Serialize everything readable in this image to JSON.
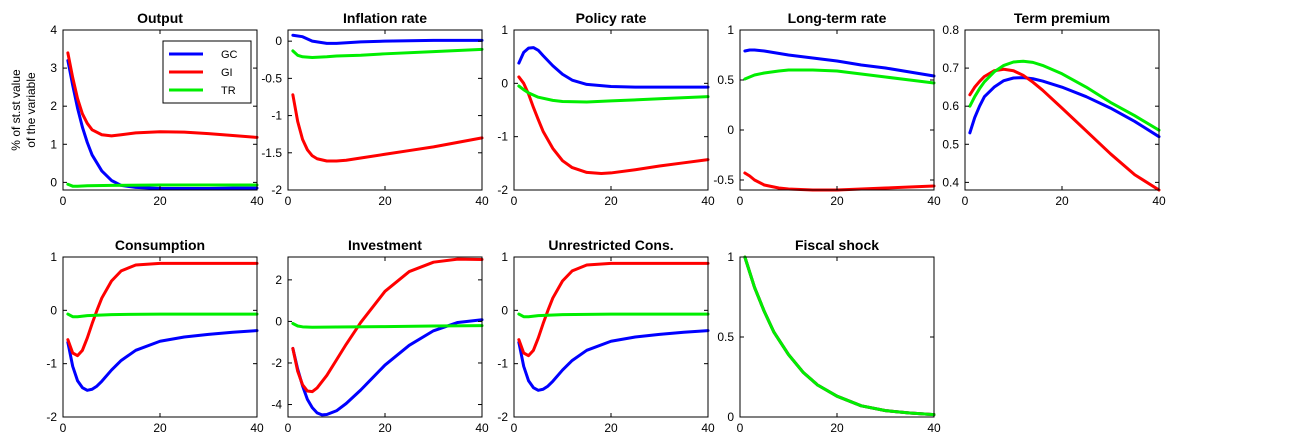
{
  "chart_data": [
    {
      "type": "line",
      "title": "Output",
      "ylabel": [
        "% of st.st value",
        "of the variable"
      ],
      "xlim": [
        0,
        40
      ],
      "ylim": [
        -0.2,
        4
      ],
      "xticks": [
        "0",
        "20",
        "40"
      ],
      "yticks": [
        "0",
        "1",
        "2",
        "3",
        "4"
      ],
      "legend": {
        "placement": "top-right",
        "entries": [
          "GC",
          "GI",
          "TR"
        ]
      },
      "series": [
        {
          "name": "GC",
          "color": "#0000ff",
          "x": [
            1,
            2,
            3,
            4,
            5,
            6,
            8,
            10,
            12,
            15,
            20,
            25,
            30,
            35,
            40
          ],
          "y": [
            3.2,
            2.55,
            1.95,
            1.45,
            1.05,
            0.72,
            0.3,
            0.05,
            -0.08,
            -0.13,
            -0.16,
            -0.16,
            -0.16,
            -0.15,
            -0.15
          ]
        },
        {
          "name": "GI",
          "color": "#ff0000",
          "x": [
            1,
            2,
            3,
            4,
            5,
            6,
            8,
            10,
            12,
            15,
            20,
            25,
            30,
            35,
            40
          ],
          "y": [
            3.4,
            2.75,
            2.2,
            1.8,
            1.55,
            1.38,
            1.25,
            1.22,
            1.25,
            1.3,
            1.33,
            1.32,
            1.28,
            1.23,
            1.18
          ]
        },
        {
          "name": "TR",
          "color": "#00ee00",
          "x": [
            1,
            2,
            3,
            5,
            10,
            20,
            30,
            40
          ],
          "y": [
            -0.05,
            -0.1,
            -0.1,
            -0.09,
            -0.08,
            -0.07,
            -0.07,
            -0.07
          ]
        }
      ]
    },
    {
      "type": "line",
      "title": "Inflation rate",
      "xlim": [
        0,
        40
      ],
      "ylim": [
        -2,
        0.15
      ],
      "xticks": [
        "0",
        "20",
        "40"
      ],
      "yticks": [
        "-2",
        "-1.5",
        "-1",
        "-0.5",
        "0"
      ],
      "series": [
        {
          "name": "GC",
          "color": "#0000ff",
          "x": [
            1,
            3,
            5,
            8,
            10,
            15,
            20,
            30,
            40
          ],
          "y": [
            0.08,
            0.06,
            0.0,
            -0.03,
            -0.03,
            -0.01,
            0.0,
            0.01,
            0.01
          ]
        },
        {
          "name": "GI",
          "color": "#ff0000",
          "x": [
            1,
            2,
            3,
            4,
            5,
            6,
            8,
            10,
            12,
            15,
            20,
            25,
            30,
            35,
            40
          ],
          "y": [
            -0.72,
            -1.08,
            -1.32,
            -1.46,
            -1.54,
            -1.58,
            -1.61,
            -1.61,
            -1.6,
            -1.57,
            -1.52,
            -1.47,
            -1.42,
            -1.36,
            -1.3
          ]
        },
        {
          "name": "TR",
          "color": "#00ee00",
          "x": [
            1,
            2,
            3,
            5,
            8,
            10,
            15,
            20,
            30,
            40
          ],
          "y": [
            -0.13,
            -0.19,
            -0.21,
            -0.22,
            -0.21,
            -0.2,
            -0.19,
            -0.17,
            -0.14,
            -0.11
          ]
        }
      ]
    },
    {
      "type": "line",
      "title": "Policy rate",
      "xlim": [
        0,
        40
      ],
      "ylim": [
        -2,
        1
      ],
      "xticks": [
        "0",
        "20",
        "40"
      ],
      "yticks": [
        "-2",
        "-1",
        "0",
        "1"
      ],
      "series": [
        {
          "name": "GC",
          "color": "#0000ff",
          "x": [
            1,
            2,
            3,
            4,
            5,
            6,
            8,
            10,
            12,
            15,
            20,
            25,
            30,
            35,
            40
          ],
          "y": [
            0.38,
            0.58,
            0.66,
            0.67,
            0.62,
            0.52,
            0.33,
            0.17,
            0.06,
            -0.02,
            -0.06,
            -0.07,
            -0.07,
            -0.07,
            -0.07
          ]
        },
        {
          "name": "GI",
          "color": "#ff0000",
          "x": [
            1,
            2,
            3,
            4,
            5,
            6,
            8,
            10,
            12,
            15,
            18,
            20,
            25,
            30,
            35,
            40
          ],
          "y": [
            0.12,
            0.0,
            -0.2,
            -0.45,
            -0.68,
            -0.9,
            -1.22,
            -1.45,
            -1.58,
            -1.67,
            -1.69,
            -1.68,
            -1.62,
            -1.55,
            -1.49,
            -1.43
          ]
        },
        {
          "name": "TR",
          "color": "#00ee00",
          "x": [
            1,
            2,
            3,
            5,
            8,
            10,
            15,
            20,
            30,
            40
          ],
          "y": [
            -0.05,
            -0.12,
            -0.18,
            -0.26,
            -0.32,
            -0.34,
            -0.35,
            -0.33,
            -0.29,
            -0.25
          ]
        }
      ]
    },
    {
      "type": "line",
      "title": "Long-term rate",
      "xlim": [
        0,
        40
      ],
      "ylim": [
        -0.6,
        1
      ],
      "xticks": [
        "0",
        "20",
        "40"
      ],
      "yticks": [
        "-0.5",
        "0",
        "0.5",
        "1"
      ],
      "series": [
        {
          "name": "GC",
          "color": "#0000ff",
          "x": [
            1,
            2,
            3,
            5,
            10,
            15,
            20,
            25,
            30,
            35,
            40
          ],
          "y": [
            0.79,
            0.8,
            0.8,
            0.79,
            0.75,
            0.72,
            0.69,
            0.65,
            0.62,
            0.58,
            0.54
          ]
        },
        {
          "name": "GI",
          "color": "#ff0000",
          "x": [
            1,
            2,
            3,
            5,
            8,
            10,
            15,
            20,
            25,
            30,
            35,
            40
          ],
          "y": [
            -0.43,
            -0.46,
            -0.5,
            -0.55,
            -0.58,
            -0.59,
            -0.6,
            -0.6,
            -0.59,
            -0.58,
            -0.57,
            -0.56
          ]
        },
        {
          "name": "TR",
          "color": "#00ee00",
          "x": [
            1,
            3,
            5,
            8,
            10,
            12,
            15,
            20,
            25,
            30,
            35,
            40
          ],
          "y": [
            0.51,
            0.55,
            0.57,
            0.59,
            0.6,
            0.6,
            0.6,
            0.59,
            0.56,
            0.53,
            0.5,
            0.47
          ]
        }
      ]
    },
    {
      "type": "line",
      "title": "Term premium",
      "xlim": [
        0,
        40
      ],
      "ylim": [
        0.38,
        0.8
      ],
      "xticks": [
        "0",
        "20",
        "40"
      ],
      "yticks": [
        "0.4",
        "0.5",
        "0.6",
        "0.7",
        "0.8"
      ],
      "series": [
        {
          "name": "GC",
          "color": "#0000ff",
          "x": [
            1,
            2,
            3,
            4,
            6,
            8,
            10,
            12,
            14,
            16,
            20,
            25,
            30,
            35,
            40
          ],
          "y": [
            0.53,
            0.57,
            0.6,
            0.625,
            0.65,
            0.667,
            0.674,
            0.675,
            0.672,
            0.666,
            0.65,
            0.625,
            0.595,
            0.56,
            0.52
          ]
        },
        {
          "name": "GI",
          "color": "#ff0000",
          "x": [
            1,
            2,
            3,
            4,
            6,
            8,
            10,
            12,
            14,
            16,
            20,
            25,
            30,
            35,
            40
          ],
          "y": [
            0.63,
            0.65,
            0.665,
            0.678,
            0.693,
            0.697,
            0.693,
            0.681,
            0.663,
            0.642,
            0.595,
            0.535,
            0.475,
            0.42,
            0.38
          ]
        },
        {
          "name": "TR",
          "color": "#00ee00",
          "x": [
            1,
            2,
            3,
            4,
            6,
            8,
            10,
            12,
            14,
            16,
            20,
            25,
            30,
            35,
            40
          ],
          "y": [
            0.6,
            0.625,
            0.646,
            0.664,
            0.69,
            0.707,
            0.716,
            0.718,
            0.715,
            0.707,
            0.685,
            0.65,
            0.61,
            0.575,
            0.537
          ]
        }
      ]
    },
    {
      "type": "line",
      "title": "Consumption",
      "xlim": [
        0,
        40
      ],
      "ylim": [
        -2,
        1
      ],
      "xticks": [
        "0",
        "20",
        "40"
      ],
      "yticks": [
        "-2",
        "-1",
        "0",
        "1"
      ],
      "series": [
        {
          "name": "GC",
          "color": "#0000ff",
          "x": [
            1,
            2,
            3,
            4,
            5,
            6,
            7,
            8,
            10,
            12,
            15,
            20,
            25,
            30,
            35,
            40
          ],
          "y": [
            -0.6,
            -1.05,
            -1.32,
            -1.45,
            -1.5,
            -1.48,
            -1.42,
            -1.33,
            -1.12,
            -0.94,
            -0.75,
            -0.58,
            -0.5,
            -0.45,
            -0.41,
            -0.38
          ]
        },
        {
          "name": "GI",
          "color": "#ff0000",
          "x": [
            1,
            2,
            3,
            4,
            5,
            6,
            7,
            8,
            10,
            12,
            15,
            20,
            25,
            30,
            35,
            40
          ],
          "y": [
            -0.55,
            -0.8,
            -0.85,
            -0.75,
            -0.52,
            -0.25,
            0.0,
            0.23,
            0.55,
            0.74,
            0.85,
            0.88,
            0.88,
            0.88,
            0.88,
            0.88
          ]
        },
        {
          "name": "TR",
          "color": "#00ee00",
          "x": [
            1,
            2,
            3,
            5,
            10,
            20,
            30,
            40
          ],
          "y": [
            -0.07,
            -0.12,
            -0.12,
            -0.1,
            -0.08,
            -0.07,
            -0.07,
            -0.07
          ]
        }
      ]
    },
    {
      "type": "line",
      "title": "Investment",
      "xlim": [
        0,
        40
      ],
      "ylim": [
        -4.6,
        3.1
      ],
      "xticks": [
        "0",
        "20",
        "40"
      ],
      "yticks": [
        "-4",
        "-2",
        "0",
        "2"
      ],
      "series": [
        {
          "name": "GC",
          "color": "#0000ff",
          "x": [
            1,
            2,
            3,
            4,
            5,
            6,
            7,
            8,
            10,
            12,
            15,
            20,
            25,
            30,
            35,
            40
          ],
          "y": [
            -1.3,
            -2.3,
            -3.1,
            -3.75,
            -4.15,
            -4.4,
            -4.5,
            -4.48,
            -4.3,
            -3.95,
            -3.3,
            -2.1,
            -1.15,
            -0.45,
            -0.05,
            0.08
          ]
        },
        {
          "name": "GI",
          "color": "#ff0000",
          "x": [
            1,
            2,
            3,
            4,
            5,
            6,
            8,
            10,
            12,
            15,
            20,
            25,
            30,
            35,
            40
          ],
          "y": [
            -1.3,
            -2.4,
            -3.05,
            -3.35,
            -3.38,
            -3.2,
            -2.6,
            -1.85,
            -1.1,
            -0.05,
            1.45,
            2.4,
            2.85,
            3.0,
            2.98
          ]
        },
        {
          "name": "TR",
          "color": "#00ee00",
          "x": [
            1,
            2,
            3,
            5,
            10,
            20,
            30,
            40
          ],
          "y": [
            -0.1,
            -0.22,
            -0.26,
            -0.28,
            -0.27,
            -0.25,
            -0.22,
            -0.2
          ]
        }
      ]
    },
    {
      "type": "line",
      "title": "Unrestricted Cons.",
      "xlim": [
        0,
        40
      ],
      "ylim": [
        -2,
        1
      ],
      "xticks": [
        "0",
        "20",
        "40"
      ],
      "yticks": [
        "-2",
        "-1",
        "0",
        "1"
      ],
      "series": [
        {
          "name": "GC",
          "color": "#0000ff",
          "x": [
            1,
            2,
            3,
            4,
            5,
            6,
            7,
            8,
            10,
            12,
            15,
            20,
            25,
            30,
            35,
            40
          ],
          "y": [
            -0.6,
            -1.05,
            -1.32,
            -1.45,
            -1.5,
            -1.48,
            -1.42,
            -1.33,
            -1.12,
            -0.94,
            -0.75,
            -0.58,
            -0.5,
            -0.45,
            -0.41,
            -0.38
          ]
        },
        {
          "name": "GI",
          "color": "#ff0000",
          "x": [
            1,
            2,
            3,
            4,
            5,
            6,
            7,
            8,
            10,
            12,
            15,
            20,
            25,
            30,
            35,
            40
          ],
          "y": [
            -0.55,
            -0.8,
            -0.85,
            -0.75,
            -0.52,
            -0.25,
            0.0,
            0.23,
            0.55,
            0.74,
            0.85,
            0.88,
            0.88,
            0.88,
            0.88,
            0.88
          ]
        },
        {
          "name": "TR",
          "color": "#00ee00",
          "x": [
            1,
            2,
            3,
            5,
            10,
            20,
            30,
            40
          ],
          "y": [
            -0.07,
            -0.12,
            -0.12,
            -0.1,
            -0.08,
            -0.07,
            -0.07,
            -0.07
          ]
        }
      ]
    },
    {
      "type": "line",
      "title": "Fiscal shock",
      "xlim": [
        0,
        40
      ],
      "ylim": [
        0,
        1
      ],
      "xticks": [
        "0",
        "20",
        "40"
      ],
      "yticks": [
        "0",
        "0.5",
        "1"
      ],
      "series": [
        {
          "name": "GC",
          "color": "#0000ff",
          "x": [
            1,
            3,
            5,
            7,
            10,
            13,
            16,
            20,
            25,
            30,
            35,
            40
          ],
          "y": [
            1.0,
            0.81,
            0.66,
            0.53,
            0.39,
            0.28,
            0.2,
            0.13,
            0.07,
            0.04,
            0.025,
            0.015
          ]
        },
        {
          "name": "GI",
          "color": "#ff0000",
          "x": [
            1,
            3,
            5,
            7,
            10,
            13,
            16,
            20,
            25,
            30,
            35,
            40
          ],
          "y": [
            1.0,
            0.81,
            0.66,
            0.53,
            0.39,
            0.28,
            0.2,
            0.13,
            0.07,
            0.04,
            0.025,
            0.015
          ]
        },
        {
          "name": "TR",
          "color": "#00ee00",
          "x": [
            1,
            3,
            5,
            7,
            10,
            13,
            16,
            20,
            25,
            30,
            35,
            40
          ],
          "y": [
            1.0,
            0.81,
            0.66,
            0.53,
            0.39,
            0.28,
            0.2,
            0.13,
            0.07,
            0.04,
            0.025,
            0.015
          ]
        }
      ]
    }
  ]
}
